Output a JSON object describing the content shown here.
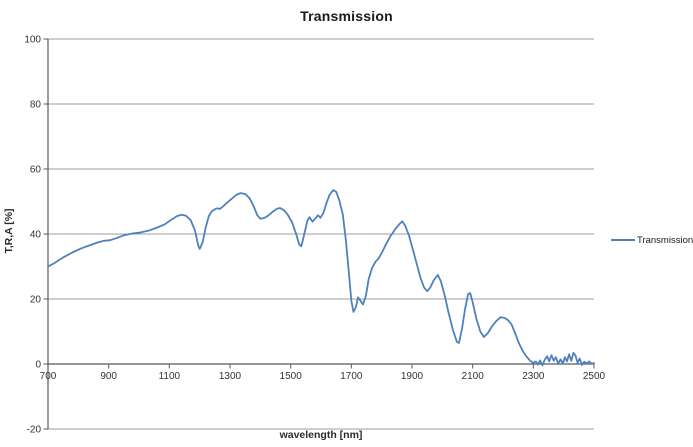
{
  "title": "Transmission",
  "legend": {
    "label": "Transmission"
  },
  "colors": {
    "series_blue": "#4F81BD",
    "gridline": "#9e9e9e",
    "axis": "#595959",
    "tick_text": "#333333",
    "background": "#ffffff"
  },
  "chart_data": {
    "type": "line",
    "title": "Transmission",
    "xlabel": "wavelength [nm]",
    "ylabel": "T,R,A [%]",
    "xlim": [
      700,
      2500
    ],
    "ylim": [
      -20,
      100
    ],
    "x_ticks": [
      700,
      900,
      1100,
      1300,
      1500,
      1700,
      1900,
      2100,
      2300,
      2500
    ],
    "y_ticks": [
      100,
      80,
      60,
      40,
      20,
      0,
      -20
    ],
    "grid": "horizontal",
    "legend_position": "right",
    "series": [
      {
        "name": "Transmission",
        "color": "#4F81BD",
        "points": [
          [
            700,
            30
          ],
          [
            720,
            31
          ],
          [
            750,
            32.8
          ],
          [
            780,
            34.3
          ],
          [
            810,
            35.6
          ],
          [
            840,
            36.6
          ],
          [
            865,
            37.4
          ],
          [
            885,
            37.9
          ],
          [
            905,
            38.1
          ],
          [
            925,
            38.7
          ],
          [
            950,
            39.6
          ],
          [
            975,
            40.1
          ],
          [
            1000,
            40.4
          ],
          [
            1030,
            41
          ],
          [
            1060,
            42
          ],
          [
            1085,
            43
          ],
          [
            1105,
            44.3
          ],
          [
            1125,
            45.5
          ],
          [
            1140,
            45.9
          ],
          [
            1155,
            45.6
          ],
          [
            1170,
            44.3
          ],
          [
            1185,
            41
          ],
          [
            1195,
            36.5
          ],
          [
            1200,
            35.4
          ],
          [
            1210,
            37.5
          ],
          [
            1220,
            42
          ],
          [
            1230,
            45.5
          ],
          [
            1240,
            47
          ],
          [
            1250,
            47.6
          ],
          [
            1258,
            47.9
          ],
          [
            1266,
            47.7
          ],
          [
            1275,
            48.3
          ],
          [
            1290,
            49.6
          ],
          [
            1305,
            50.8
          ],
          [
            1320,
            52
          ],
          [
            1335,
            52.6
          ],
          [
            1350,
            52.3
          ],
          [
            1365,
            51
          ],
          [
            1378,
            48.5
          ],
          [
            1390,
            45.8
          ],
          [
            1400,
            44.7
          ],
          [
            1412,
            44.9
          ],
          [
            1425,
            45.6
          ],
          [
            1440,
            46.8
          ],
          [
            1455,
            47.8
          ],
          [
            1465,
            48
          ],
          [
            1478,
            47.3
          ],
          [
            1490,
            46
          ],
          [
            1505,
            43.5
          ],
          [
            1518,
            40
          ],
          [
            1528,
            36.8
          ],
          [
            1535,
            36.2
          ],
          [
            1545,
            40
          ],
          [
            1555,
            44
          ],
          [
            1562,
            45.2
          ],
          [
            1572,
            43.8
          ],
          [
            1582,
            44.8
          ],
          [
            1590,
            45.8
          ],
          [
            1598,
            45
          ],
          [
            1608,
            46.5
          ],
          [
            1618,
            49.5
          ],
          [
            1628,
            52
          ],
          [
            1640,
            53.5
          ],
          [
            1650,
            53
          ],
          [
            1660,
            50.5
          ],
          [
            1672,
            46
          ],
          [
            1682,
            38
          ],
          [
            1692,
            28
          ],
          [
            1700,
            19.5
          ],
          [
            1707,
            16
          ],
          [
            1715,
            17.5
          ],
          [
            1722,
            20.5
          ],
          [
            1730,
            19.5
          ],
          [
            1738,
            18.3
          ],
          [
            1748,
            21
          ],
          [
            1757,
            26
          ],
          [
            1768,
            29.5
          ],
          [
            1780,
            31.5
          ],
          [
            1790,
            32.5
          ],
          [
            1802,
            34.5
          ],
          [
            1815,
            37
          ],
          [
            1830,
            39.5
          ],
          [
            1845,
            41.5
          ],
          [
            1858,
            43
          ],
          [
            1868,
            43.9
          ],
          [
            1878,
            42.5
          ],
          [
            1890,
            39.5
          ],
          [
            1902,
            35.5
          ],
          [
            1915,
            31
          ],
          [
            1928,
            26.5
          ],
          [
            1940,
            23.5
          ],
          [
            1950,
            22.4
          ],
          [
            1960,
            23.5
          ],
          [
            1972,
            25.8
          ],
          [
            1985,
            27.4
          ],
          [
            1995,
            25.5
          ],
          [
            2008,
            21
          ],
          [
            2020,
            16
          ],
          [
            2035,
            10.5
          ],
          [
            2048,
            6.8
          ],
          [
            2055,
            6.5
          ],
          [
            2065,
            11
          ],
          [
            2075,
            17
          ],
          [
            2085,
            21.5
          ],
          [
            2092,
            21.8
          ],
          [
            2100,
            19
          ],
          [
            2112,
            14
          ],
          [
            2125,
            10
          ],
          [
            2137,
            8.3
          ],
          [
            2150,
            9.5
          ],
          [
            2163,
            11.5
          ],
          [
            2178,
            13.2
          ],
          [
            2192,
            14.4
          ],
          [
            2205,
            14.2
          ],
          [
            2215,
            13.6
          ],
          [
            2228,
            12.2
          ],
          [
            2240,
            9.5
          ],
          [
            2252,
            6.5
          ],
          [
            2265,
            4
          ],
          [
            2278,
            2.2
          ],
          [
            2290,
            1
          ],
          [
            2300,
            0.3
          ],
          [
            2308,
            0.8
          ],
          [
            2315,
            -0.2
          ],
          [
            2322,
            1.1
          ],
          [
            2330,
            -0.4
          ],
          [
            2338,
            1.4
          ],
          [
            2346,
            2.4
          ],
          [
            2352,
            0.8
          ],
          [
            2360,
            2.7
          ],
          [
            2367,
            1
          ],
          [
            2374,
            2.1
          ],
          [
            2382,
            0.2
          ],
          [
            2390,
            1.4
          ],
          [
            2397,
            0.1
          ],
          [
            2404,
            2.1
          ],
          [
            2411,
            0.8
          ],
          [
            2418,
            3
          ],
          [
            2425,
            1
          ],
          [
            2432,
            3.4
          ],
          [
            2439,
            2.6
          ],
          [
            2446,
            0.4
          ],
          [
            2453,
            1.7
          ],
          [
            2460,
            -0.3
          ],
          [
            2468,
            0.7
          ],
          [
            2476,
            0.2
          ],
          [
            2484,
            0.8
          ],
          [
            2492,
            0.1
          ],
          [
            2500,
            0.3
          ]
        ]
      }
    ]
  }
}
